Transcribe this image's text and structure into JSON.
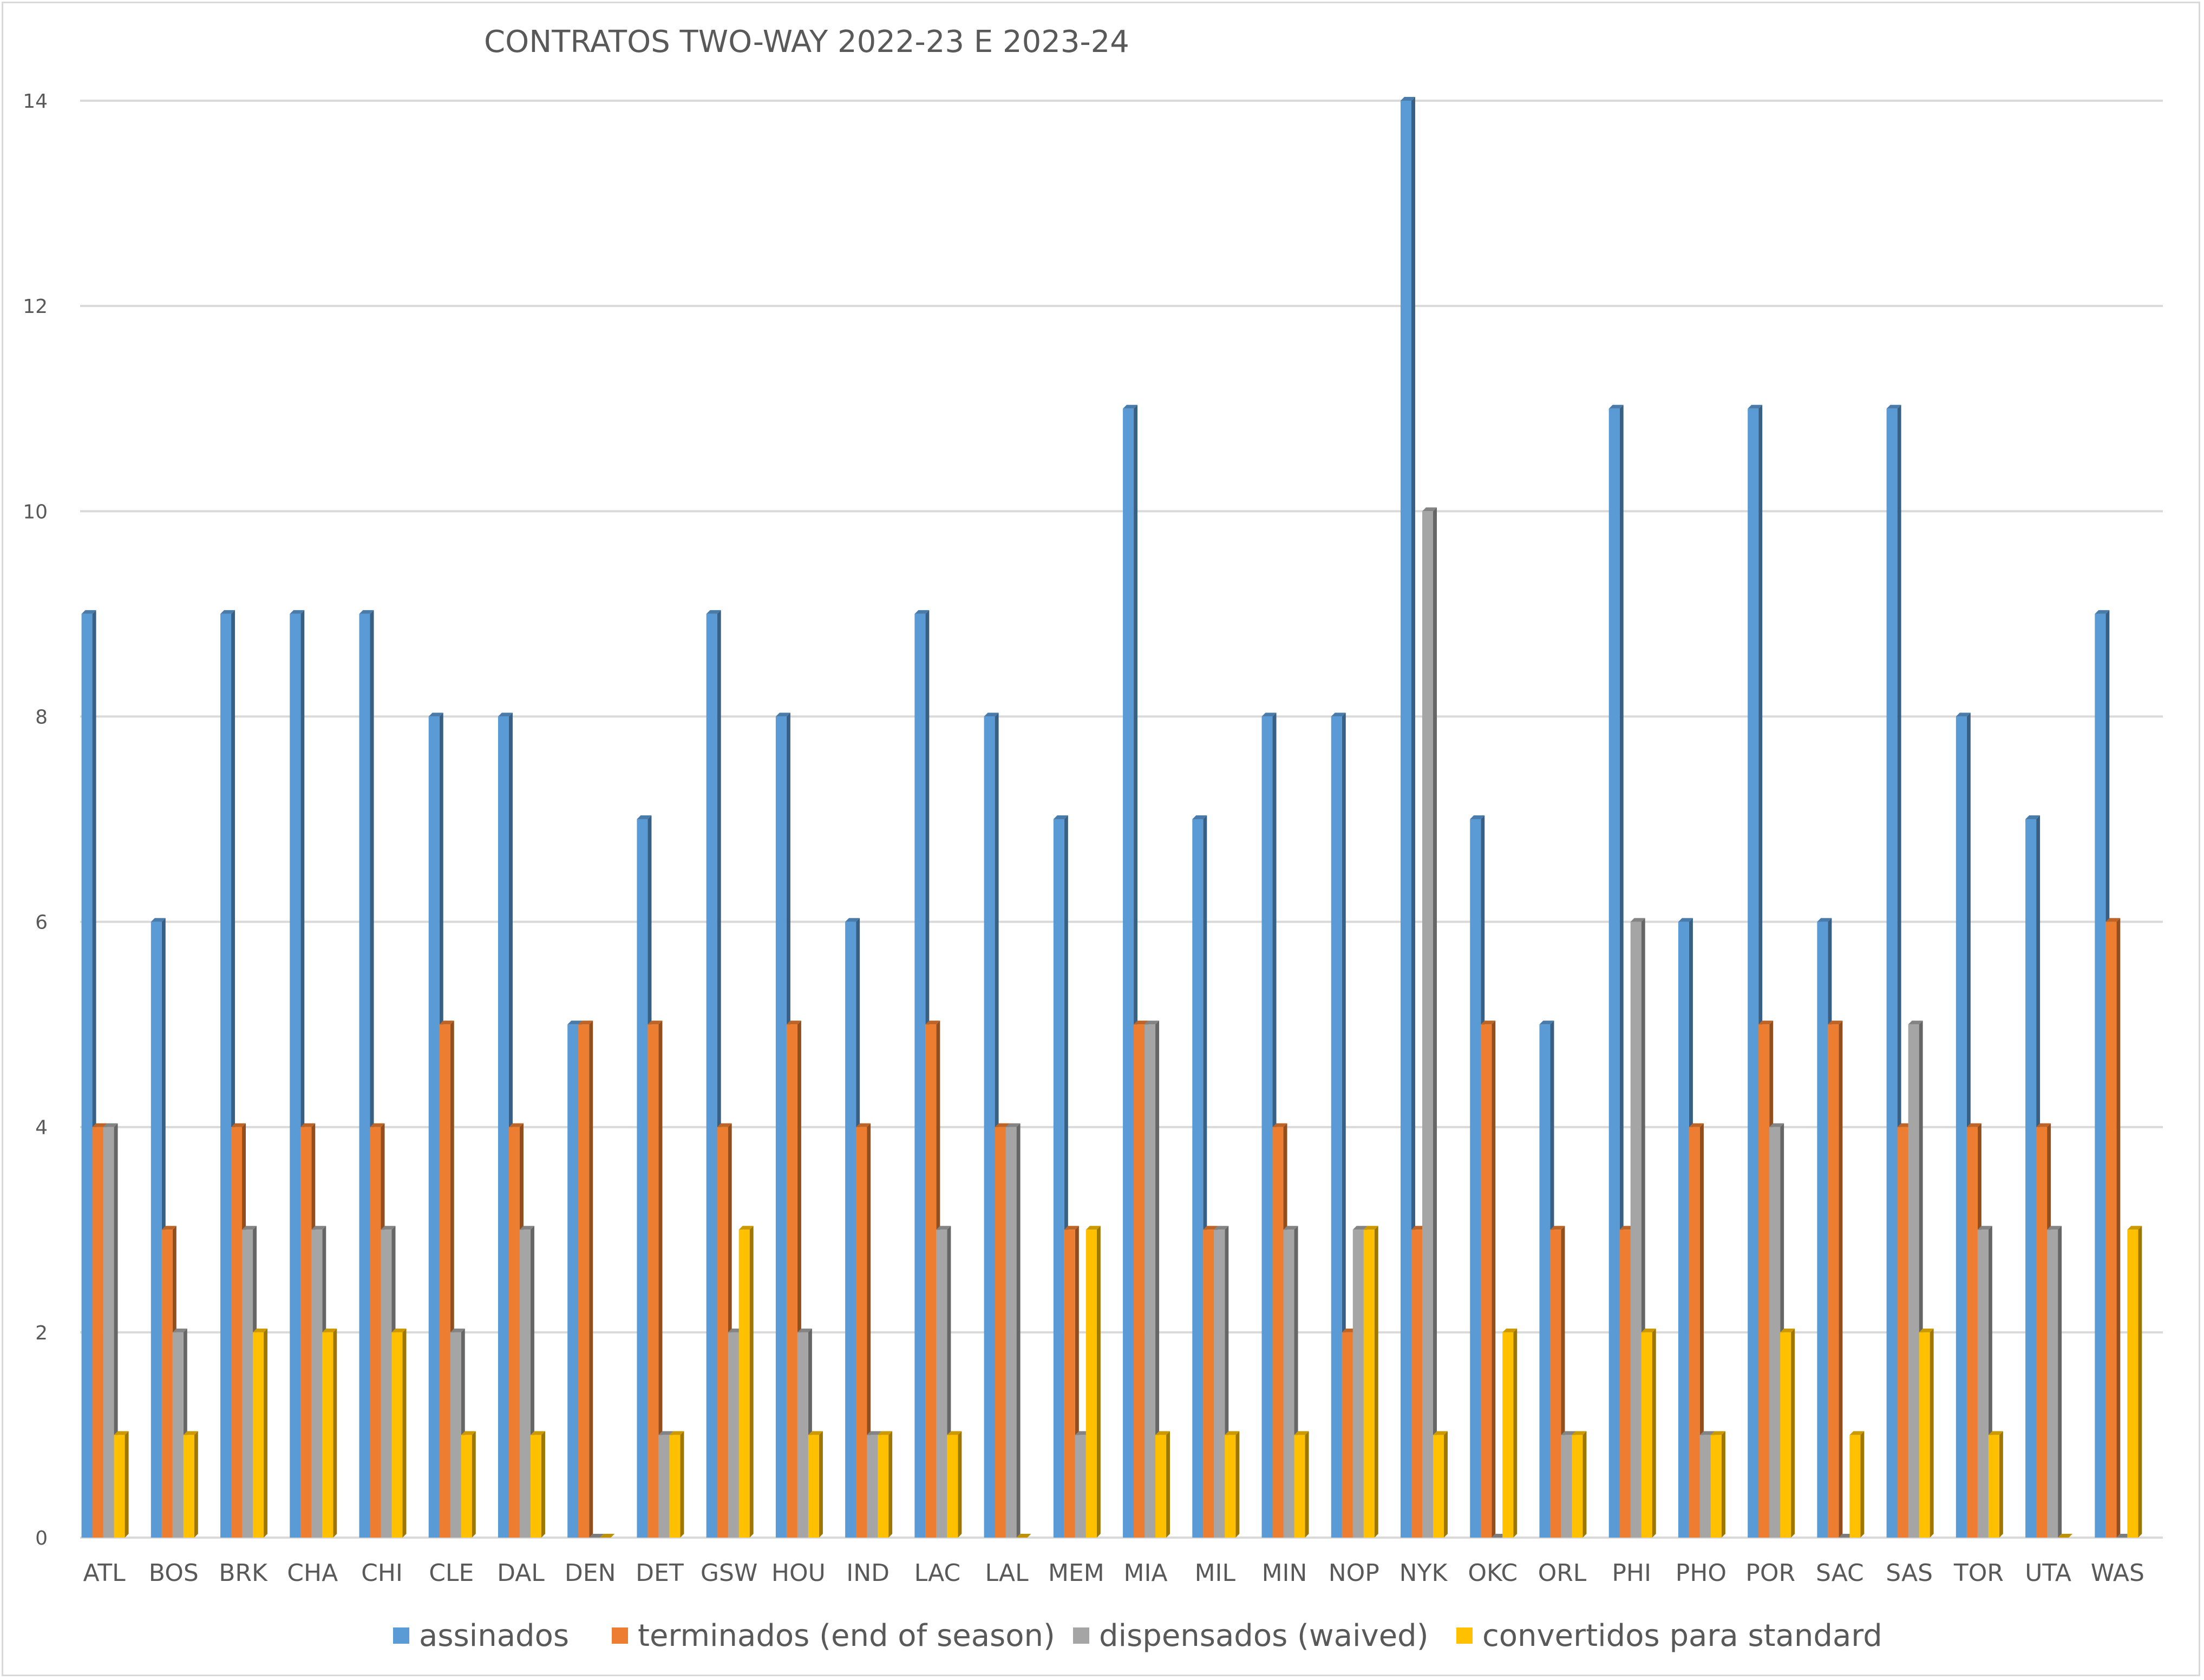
{
  "chart_data": {
    "type": "bar",
    "title": "CONTRATOS TWO-WAY 2022-23 E 2023-24",
    "xlabel": "",
    "ylabel": "",
    "ylim": [
      0,
      14
    ],
    "yticks": [
      "0",
      "2",
      "4",
      "6",
      "8",
      "10",
      "12",
      "14"
    ],
    "grid": true,
    "legend_position": "bottom",
    "categories": [
      "ATL",
      "BOS",
      "BRK",
      "CHA",
      "CHI",
      "CLE",
      "DAL",
      "DEN",
      "DET",
      "GSW",
      "HOU",
      "IND",
      "LAC",
      "LAL",
      "MEM",
      "MIA",
      "MIL",
      "MIN",
      "NOP",
      "NYK",
      "OKC",
      "ORL",
      "PHI",
      "PHO",
      "POR",
      "SAC",
      "SAS",
      "TOR",
      "UTA",
      "WAS"
    ],
    "series": [
      {
        "name": "assinados",
        "color": "#5B9BD5",
        "values": [
          9,
          6,
          9,
          9,
          9,
          8,
          8,
          5,
          7,
          9,
          8,
          6,
          9,
          8,
          7,
          11,
          7,
          8,
          8,
          14,
          7,
          5,
          11,
          6,
          11,
          6,
          11,
          8,
          7,
          9
        ]
      },
      {
        "name": "terminados (end of season)",
        "color": "#ED7D31",
        "values": [
          4,
          3,
          4,
          4,
          4,
          5,
          4,
          5,
          5,
          4,
          5,
          4,
          5,
          4,
          3,
          5,
          3,
          4,
          2,
          3,
          5,
          3,
          3,
          4,
          5,
          5,
          4,
          4,
          4,
          6
        ]
      },
      {
        "name": "dispensados (waived)",
        "color": "#A5A5A5",
        "values": [
          4,
          2,
          3,
          3,
          3,
          2,
          3,
          0,
          1,
          2,
          2,
          1,
          3,
          4,
          1,
          5,
          3,
          3,
          3,
          10,
          0,
          1,
          6,
          1,
          4,
          0,
          5,
          3,
          3,
          0
        ]
      },
      {
        "name": "convertidos para standard",
        "color": "#FFC000",
        "values": [
          1,
          1,
          2,
          2,
          2,
          1,
          1,
          0,
          1,
          3,
          1,
          1,
          1,
          0,
          3,
          1,
          1,
          1,
          3,
          1,
          2,
          1,
          2,
          1,
          2,
          1,
          2,
          1,
          0,
          3
        ]
      }
    ]
  }
}
